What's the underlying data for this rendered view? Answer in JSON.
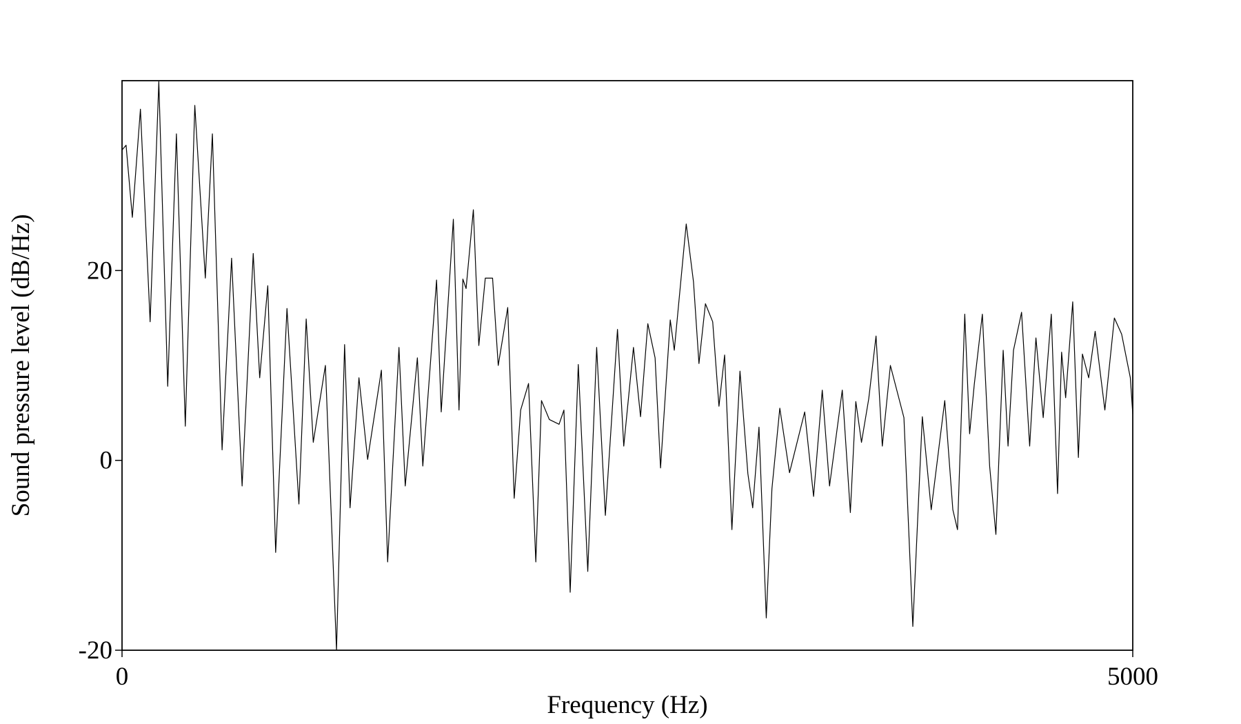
{
  "chart_data": {
    "type": "line",
    "x_label": "Frequency (Hz)",
    "y_label": "Sound pressure level (dB/Hz)",
    "xlim": [
      0,
      5000
    ],
    "xticks": [
      0,
      5000
    ],
    "ylim": [
      -20,
      40
    ],
    "yticks": [
      -20,
      0,
      20
    ],
    "series": [
      {
        "color": "#000000",
        "x": [
          0,
          20,
          51,
          91,
          139,
          182,
          226,
          269,
          313,
          360,
          412,
          447,
          495,
          542,
          594,
          649,
          681,
          721,
          760,
          816,
          875,
          911,
          946,
          1006,
          1061,
          1101,
          1128,
          1172,
          1215,
          1283,
          1314,
          1370,
          1401,
          1461,
          1488,
          1556,
          1579,
          1639,
          1667,
          1686,
          1702,
          1738,
          1765,
          1797,
          1833,
          1861,
          1908,
          1940,
          1972,
          2011,
          2047,
          2075,
          2114,
          2162,
          2186,
          2217,
          2257,
          2304,
          2348,
          2391,
          2451,
          2482,
          2530,
          2565,
          2601,
          2637,
          2664,
          2712,
          2732,
          2791,
          2827,
          2854,
          2886,
          2922,
          2953,
          2981,
          3017,
          3057,
          3096,
          3120,
          3151,
          3187,
          3215,
          3254,
          3302,
          3377,
          3421,
          3464,
          3500,
          3563,
          3603,
          3630,
          3658,
          3694,
          3730,
          3761,
          3801,
          3868,
          3912,
          3959,
          4003,
          4070,
          4110,
          4133,
          4169,
          4193,
          4216,
          4256,
          4292,
          4323,
          4359,
          4383,
          4410,
          4450,
          4490,
          4521,
          4557,
          4597,
          4628,
          4648,
          4668,
          4703,
          4731,
          4751,
          4782,
          4814,
          4862,
          4909,
          4945,
          4988,
          5000
        ],
        "values": [
          32.7,
          33.2,
          25.6,
          37,
          14.6,
          39.9,
          7.8,
          34.4,
          3.6,
          37.4,
          19.2,
          34.4,
          1.1,
          21.3,
          -2.7,
          21.8,
          8.7,
          18.4,
          -9.7,
          16,
          -4.6,
          14.9,
          1.9,
          10,
          -20,
          12.2,
          -5,
          8.7,
          0.1,
          9.5,
          -10.7,
          11.9,
          -2.7,
          10.8,
          -0.6,
          19,
          5.1,
          25.4,
          5.3,
          19.1,
          18.1,
          26.4,
          12.1,
          19.2,
          19.2,
          10,
          16.1,
          -4,
          5.3,
          8.1,
          -10.7,
          6.3,
          4.3,
          3.8,
          5.3,
          -13.9,
          10.1,
          -11.7,
          11.9,
          -5.8,
          13.8,
          1.5,
          11.9,
          4.6,
          14.4,
          10.8,
          -0.8,
          14.8,
          11.6,
          24.9,
          18.8,
          10.2,
          16.5,
          14.6,
          5.7,
          11.1,
          -7.3,
          9.4,
          -1.4,
          -5,
          3.5,
          -16.6,
          -3,
          5.5,
          -1.3,
          5.1,
          -3.8,
          7.4,
          -2.7,
          7.4,
          -5.5,
          6.2,
          1.9,
          6.5,
          13.1,
          1.5,
          10,
          4.5,
          -17.5,
          4.6,
          -5.2,
          6.3,
          -5.2,
          -7.3,
          15.4,
          2.8,
          8,
          15.4,
          -0.6,
          -7.8,
          11.6,
          1.5,
          11.6,
          15.6,
          1.5,
          12.9,
          4.5,
          15.4,
          -3.5,
          11.4,
          6.6,
          16.7,
          0.3,
          11.2,
          8.7,
          13.6,
          5.3,
          15,
          13.3,
          8.7,
          4.9
        ]
      }
    ]
  }
}
